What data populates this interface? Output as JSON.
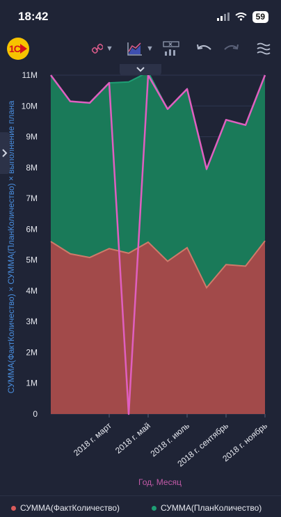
{
  "status_bar": {
    "time": "18:42",
    "battery": "59"
  },
  "toolbar": {
    "logo_text": "1С",
    "icons": [
      "link-icon",
      "area-chart-icon",
      "table-chart-icon",
      "undo-icon",
      "redo-icon",
      "layers-icon"
    ]
  },
  "colors": {
    "fact": "#d95b5b",
    "fact_fill": "#a24a4a",
    "plan": "#1e9e74",
    "plan_fill": "#1a7a59",
    "percent": "#e05fc0"
  },
  "chart_data": {
    "type": "area",
    "xlabel": "Год, Месяц",
    "ylabel": "СУММА(ФактКоличество) × СУММА(ПланКоличество) × выполнение плана",
    "ylim": [
      0,
      11000000
    ],
    "y_ticks": [
      "0",
      "1M",
      "2M",
      "3M",
      "4M",
      "5M",
      "6M",
      "7M",
      "8M",
      "9M",
      "10M",
      "11M"
    ],
    "x_tick_labels": [
      "2018 г. март",
      "2018 г. май",
      "2018 г. июль",
      "2018 г. сентябрь",
      "2018 г. ноябрь"
    ],
    "x_tick_index": [
      3,
      5,
      7,
      9,
      11
    ],
    "series": [
      {
        "name": "СУММА(ФактКоличество)",
        "values": [
          5600000,
          5200000,
          5080000,
          5370000,
          5220000,
          5580000,
          4960000,
          5400000,
          4100000,
          4850000,
          4800000,
          5620000
        ]
      },
      {
        "name": "СУММА(ПланКоличество)",
        "values": [
          11000000,
          10150000,
          10100000,
          10750000,
          10780000,
          11100000,
          9900000,
          10550000,
          7950000,
          9550000,
          9380000,
          11000000
        ]
      },
      {
        "name": "выполнение плана",
        "values": [
          11000000,
          10150000,
          10100000,
          10750000,
          0,
          11000000,
          9900000,
          10550000,
          7950000,
          9550000,
          9380000,
          11000000
        ]
      }
    ]
  }
}
